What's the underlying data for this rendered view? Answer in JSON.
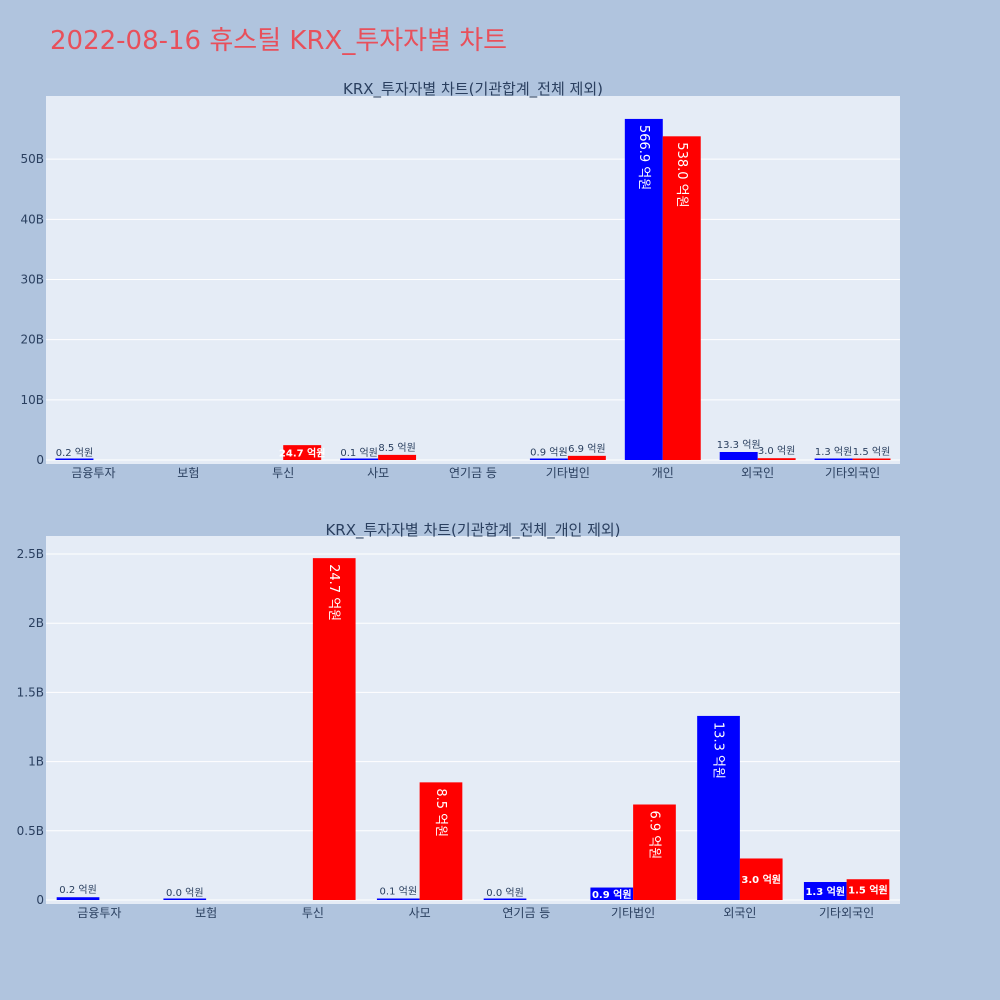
{
  "page_title": "2022-08-16 휴스틸 KRX_투자자별 차트",
  "colors": {
    "buy": "#0000ff",
    "sell": "#ff0000",
    "plot_bg": "#e5ecf6",
    "page_bg": "#b0c4de",
    "title": "#e8505b"
  },
  "chart_data": [
    {
      "type": "bar",
      "title": "KRX_투자자별 차트(기관합계_전체 제외)",
      "categories": [
        "금융투자",
        "보험",
        "투신",
        "사모",
        "연기금 등",
        "기타법인",
        "개인",
        "외국인",
        "기타외국인"
      ],
      "ylim": [
        0,
        60500000000
      ],
      "yticks": [
        0,
        10000000000,
        20000000000,
        30000000000,
        40000000000,
        50000000000
      ],
      "ytick_labels": [
        "0",
        "10B",
        "20B",
        "30B",
        "40B",
        "50B"
      ],
      "grid": true,
      "series": [
        {
          "values": [
            20000000,
            null,
            null,
            10000000,
            null,
            90000000,
            56690000000,
            1330000000,
            130000000
          ],
          "labels": [
            "0.2 억원",
            "",
            "",
            "0.1 억원",
            "",
            "0.9 억원",
            "566.9 억원",
            "13.3 억원",
            "1.3 억원"
          ]
        },
        {
          "values": [
            null,
            null,
            2470000000,
            850000000,
            null,
            690000000,
            53800000000,
            300000000,
            150000000
          ],
          "labels": [
            "",
            "",
            "24.7 억원",
            "8.5 억원",
            "",
            "6.9 억원",
            "538.0 억원",
            "3.0 억원",
            "1.5 억원"
          ]
        }
      ]
    },
    {
      "type": "bar",
      "title": "KRX_투자자별 차트(기관합계_전체_개인 제외)",
      "categories": [
        "금융투자",
        "보험",
        "투신",
        "사모",
        "연기금 등",
        "기타법인",
        "외국인",
        "기타외국인"
      ],
      "ylim": [
        0,
        2630000000
      ],
      "yticks": [
        0,
        500000000,
        1000000000,
        1500000000,
        2000000000,
        2500000000
      ],
      "ytick_labels": [
        "0",
        "0.5B",
        "1B",
        "1.5B",
        "2B",
        "2.5B"
      ],
      "grid": true,
      "series": [
        {
          "values": [
            20000000,
            0,
            null,
            10000000,
            0,
            90000000,
            1330000000,
            130000000
          ],
          "labels": [
            "0.2 억원",
            "0.0 억원",
            "",
            "0.1 억원",
            "0.0 억원",
            "0.9 억원",
            "13.3 억원",
            "1.3 억원"
          ]
        },
        {
          "values": [
            null,
            null,
            2470000000,
            850000000,
            null,
            690000000,
            300000000,
            150000000
          ],
          "labels": [
            "",
            "",
            "24.7 억원",
            "8.5 억원",
            "",
            "6.9 억원",
            "3.0 억원",
            "1.5 억원"
          ]
        }
      ]
    }
  ]
}
